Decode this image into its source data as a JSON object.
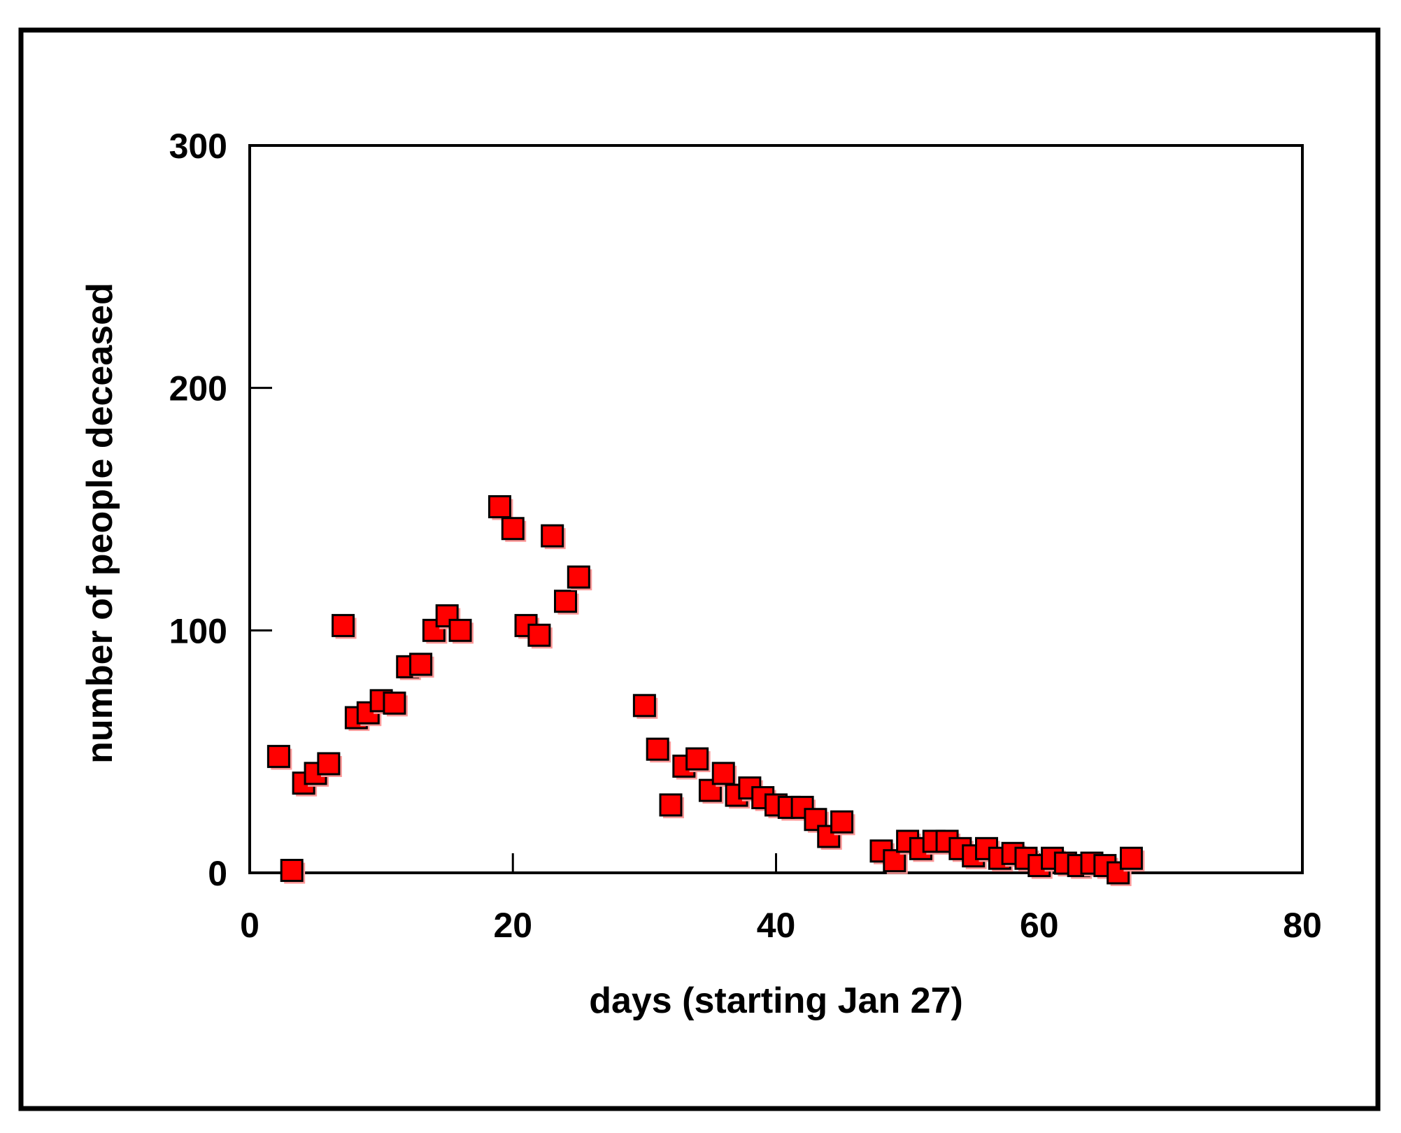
{
  "chart_data": {
    "type": "scatter",
    "title": "",
    "xlabel": "days (starting Jan 27)",
    "ylabel": "number of people deceased",
    "xlim": [
      0,
      80
    ],
    "ylim": [
      0,
      300
    ],
    "x_ticks": [
      "0",
      "20",
      "40",
      "60",
      "80"
    ],
    "y_ticks": [
      "0",
      "100",
      "200",
      "300"
    ],
    "grid": false,
    "legend": "none",
    "marker": "square",
    "colors": {
      "marker_fill": "#ff0000",
      "marker_edge": "#000000",
      "marker_shadow": "#ff9999"
    },
    "series": [
      {
        "points": [
          [
            2.2,
            48
          ],
          [
            3.2,
            1
          ],
          [
            4.1,
            37
          ],
          [
            5,
            41
          ],
          [
            6,
            45
          ],
          [
            7.1,
            102
          ],
          [
            8.1,
            64
          ],
          [
            9,
            66
          ],
          [
            10,
            71
          ],
          [
            11,
            70
          ],
          [
            12,
            85
          ],
          [
            13,
            86
          ],
          [
            14,
            100
          ],
          [
            15,
            106
          ],
          [
            16,
            100
          ],
          [
            19,
            151
          ],
          [
            20,
            142
          ],
          [
            21,
            102
          ],
          [
            22,
            98
          ],
          [
            23,
            139
          ],
          [
            24,
            112
          ],
          [
            25,
            122
          ],
          [
            30,
            69
          ],
          [
            31,
            51
          ],
          [
            32,
            28
          ],
          [
            33,
            44
          ],
          [
            34,
            47
          ],
          [
            35,
            34
          ],
          [
            36,
            41
          ],
          [
            37,
            32
          ],
          [
            38,
            35
          ],
          [
            39,
            31
          ],
          [
            40,
            28
          ],
          [
            41,
            27
          ],
          [
            42,
            27
          ],
          [
            43,
            22
          ],
          [
            44,
            15
          ],
          [
            45,
            21
          ],
          [
            48,
            9
          ],
          [
            49,
            5
          ],
          [
            50,
            13
          ],
          [
            51,
            10
          ],
          [
            52,
            13
          ],
          [
            53,
            13
          ],
          [
            54,
            10
          ],
          [
            55,
            7
          ],
          [
            56,
            10
          ],
          [
            57,
            6
          ],
          [
            58,
            8
          ],
          [
            59,
            6
          ],
          [
            60,
            3
          ],
          [
            61,
            6
          ],
          [
            62,
            4
          ],
          [
            63,
            3
          ],
          [
            64,
            4
          ],
          [
            65,
            3
          ],
          [
            66,
            0
          ],
          [
            67,
            6
          ]
        ]
      }
    ]
  }
}
